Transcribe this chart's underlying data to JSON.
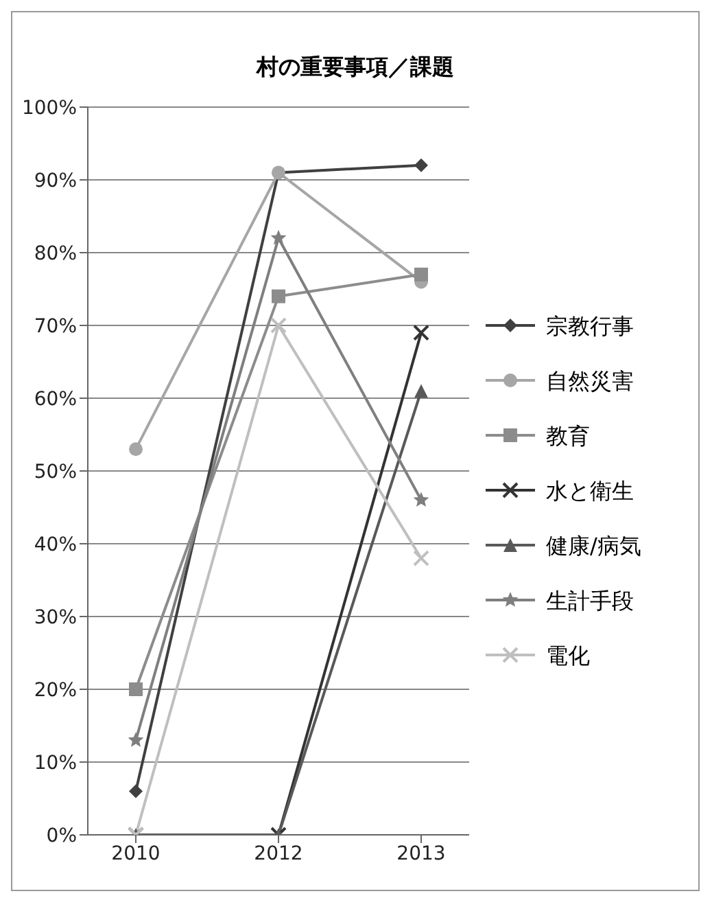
{
  "chart_data": {
    "type": "line",
    "title": "村の重要事項／課題",
    "categories": [
      "2010",
      "2012",
      "2013"
    ],
    "series": [
      {
        "name": "宗教行事",
        "color": "#404040",
        "marker": "diamond",
        "values": [
          6,
          91,
          92
        ]
      },
      {
        "name": "自然災害",
        "color": "#a6a6a6",
        "marker": "circle",
        "values": [
          53,
          91,
          76
        ]
      },
      {
        "name": "教育",
        "color": "#8c8c8c",
        "marker": "square",
        "values": [
          20,
          74,
          77
        ]
      },
      {
        "name": "水と衛生",
        "color": "#333333",
        "marker": "cross",
        "values": [
          0,
          0,
          69
        ]
      },
      {
        "name": "健康/病気",
        "color": "#595959",
        "marker": "triangle",
        "values": [
          0,
          0,
          61
        ]
      },
      {
        "name": "生計手段",
        "color": "#7f7f7f",
        "marker": "star",
        "values": [
          13,
          82,
          46
        ]
      },
      {
        "name": "電化",
        "color": "#bfbfbf",
        "marker": "cross",
        "values": [
          0,
          70,
          38
        ]
      }
    ],
    "ylim": [
      0,
      100
    ],
    "yticks": [
      {
        "value": 0,
        "label": "0%"
      },
      {
        "value": 10,
        "label": "10%"
      },
      {
        "value": 20,
        "label": "20%"
      },
      {
        "value": 30,
        "label": "30%"
      },
      {
        "value": 40,
        "label": "40%"
      },
      {
        "value": 50,
        "label": "50%"
      },
      {
        "value": 60,
        "label": "60%"
      },
      {
        "value": 70,
        "label": "70%"
      },
      {
        "value": 80,
        "label": "80%"
      },
      {
        "value": 90,
        "label": "90%"
      },
      {
        "value": 100,
        "label": "100%"
      }
    ],
    "grid": "y",
    "legend": "right"
  }
}
